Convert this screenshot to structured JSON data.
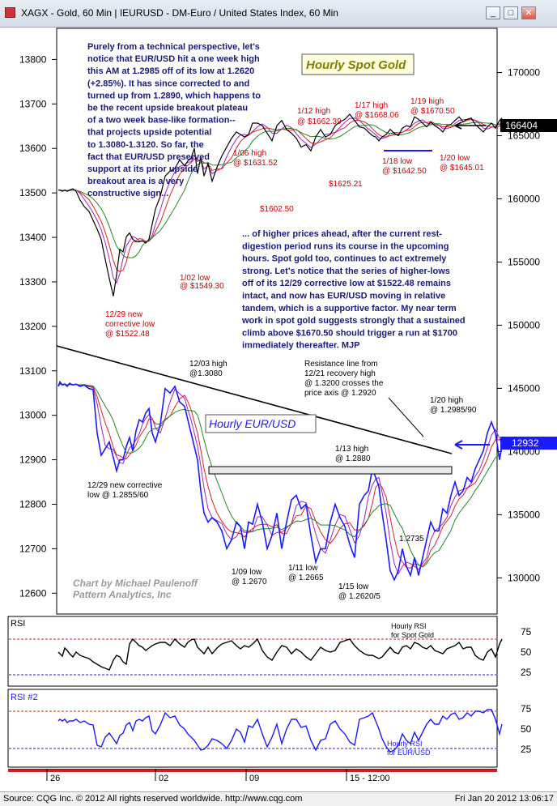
{
  "window": {
    "title": "XAGX - Gold, 60 Min    |   IEURUSD - DM-Euro / United States Index, 60 Min",
    "buttons": [
      "_",
      "□",
      "✕"
    ]
  },
  "chart_data": [
    {
      "type": "line",
      "title": "Hourly Spot Gold",
      "axis": "right",
      "yticks": [
        130000,
        135000,
        140000,
        145000,
        150000,
        155000,
        160000,
        165000,
        170000
      ],
      "ylim": [
        127200,
        173500
      ],
      "last_value": "166404",
      "x": [
        0,
        2,
        5,
        8,
        11,
        14,
        18,
        22,
        27,
        32,
        38,
        43,
        48,
        53,
        58,
        63,
        68,
        72,
        76,
        80,
        84,
        88,
        92,
        96,
        100,
        104,
        108,
        112,
        116,
        120,
        126,
        132,
        138,
        144,
        150,
        156,
        160,
        164,
        168,
        172,
        176,
        180,
        185,
        190,
        196,
        202,
        208,
        214,
        220,
        225,
        230,
        235,
        240,
        246,
        252,
        258,
        264,
        270,
        276,
        282,
        288,
        294,
        300,
        306,
        312,
        318,
        324,
        330,
        336,
        342,
        348,
        354,
        360,
        366,
        372,
        378,
        383,
        388,
        392,
        396,
        400,
        405,
        410,
        415,
        420,
        425,
        430,
        435,
        440,
        445,
        450,
        455,
        460,
        465,
        470,
        475,
        480,
        485,
        490,
        495,
        500,
        505,
        510,
        515,
        520,
        525,
        530,
        535,
        540,
        545,
        548
      ],
      "series": [
        {
          "values": [
            160700,
            160700,
            160600,
            160700,
            160600,
            160700,
            160800,
            160600,
            159900,
            159400,
            159000,
            158300,
            157600,
            156800,
            155200,
            153700,
            152300,
            154000,
            156000,
            155800,
            157000,
            157300,
            156800,
            156600,
            156600,
            156700,
            156500,
            156800,
            158000,
            159200,
            160200,
            161800,
            162200,
            162400,
            163100,
            162600,
            163000,
            163200,
            164000,
            162000,
            163300,
            161800,
            162800,
            161400,
            162500,
            163400,
            164100,
            164800,
            165300,
            165100,
            164900,
            165100,
            166000,
            166000,
            165800,
            165200,
            164600,
            165800,
            166200,
            165500,
            165200,
            164800,
            164100,
            164300,
            163800,
            164900,
            165500,
            164900,
            165100,
            165800,
            166100,
            166300,
            166700,
            166200,
            165700,
            165600,
            165300,
            165000,
            164900,
            164600,
            164900,
            165100,
            165500,
            165200,
            165000,
            165600,
            165800,
            165700,
            166500,
            166300,
            166000,
            165700,
            166100,
            165800,
            165600,
            165300,
            165800,
            165900,
            166200,
            166500,
            166100,
            166300,
            166400,
            165900,
            165600,
            165300,
            165700,
            166000,
            165600,
            166200,
            166404
          ]
        }
      ],
      "annotations": [
        "1/02 low @ $1549.30",
        "12/29 new corrective low @ $1522.48",
        "1/06 high @ $1631.52",
        "$1602.50",
        "1/12 high @ $1662.39",
        "$1625.21",
        "1/17 high @ $1668.06",
        "1/19 high @ $1670.50",
        "1/18 low @ $1642.50",
        "1/20 low @ $1645.01"
      ]
    },
    {
      "type": "line",
      "title": "Hourly EUR/USD",
      "axis": "left",
      "yticks": [
        12600,
        12700,
        12800,
        12900,
        13000,
        13100,
        13200,
        13300,
        13400,
        13500,
        13600,
        13700,
        13800
      ],
      "ylim": [
        12555,
        13870
      ],
      "last_value": "12932",
      "x": [
        0,
        2,
        5,
        8,
        11,
        14,
        18,
        22,
        27,
        32,
        38,
        43,
        48,
        53,
        58,
        63,
        68,
        72,
        76,
        80,
        84,
        88,
        92,
        96,
        100,
        104,
        108,
        112,
        116,
        120,
        126,
        132,
        138,
        144,
        150,
        156,
        160,
        164,
        168,
        172,
        176,
        180,
        185,
        190,
        196,
        202,
        208,
        214,
        220,
        225,
        230,
        235,
        240,
        246,
        252,
        258,
        264,
        270,
        276,
        282,
        288,
        294,
        300,
        306,
        312,
        318,
        324,
        330,
        336,
        342,
        348,
        354,
        360,
        366,
        372,
        378,
        383,
        388,
        392,
        396,
        400,
        405,
        410,
        415,
        420,
        425,
        430,
        435,
        440,
        445,
        450,
        455,
        460,
        465,
        470,
        475,
        480,
        485,
        490,
        495,
        500,
        505,
        510,
        515,
        520,
        525,
        530,
        535,
        540,
        545,
        548
      ],
      "series": [
        {
          "values": [
            13065,
            13075,
            13068,
            13070,
            13065,
            13072,
            13068,
            13070,
            13065,
            13068,
            13060,
            13058,
            12960,
            12910,
            12925,
            12940,
            12905,
            12875,
            12900,
            12900,
            12930,
            12950,
            12920,
            12965,
            12990,
            12985,
            13005,
            13015,
            12960,
            12940,
            12980,
            13060,
            13050,
            13065,
            13030,
            13020,
            12990,
            12960,
            12930,
            12900,
            12830,
            12780,
            12760,
            12770,
            12760,
            12740,
            12700,
            12720,
            12760,
            12750,
            12700,
            12760,
            12755,
            12800,
            12760,
            12700,
            12730,
            12780,
            12700,
            12760,
            12810,
            12820,
            12790,
            12800,
            12730,
            12670,
            12700,
            12700,
            12760,
            12800,
            12770,
            12750,
            12710,
            12680,
            12800,
            12820,
            12830,
            12880,
            12860,
            12840,
            12780,
            12720,
            12650,
            12630,
            12650,
            12700,
            12660,
            12640,
            12680,
            12640,
            12680,
            12720,
            12760,
            12740,
            12740,
            12790,
            12780,
            12820,
            12850,
            12820,
            12830,
            12860,
            12850,
            12880,
            12900,
            12920,
            12960,
            12985,
            12960,
            12900,
            12932
          ]
        }
      ],
      "annotations": [
        "12/03 high @1.3080",
        "12/29 new corrective low @ 1.2855/60",
        "1/09 low @ 1.2670",
        "1/11 low @ 1.2665",
        "1/13 high @ 1.2880",
        "1/15 low @ 1.2620/5",
        "1.2735",
        "1/20 high @ 1.2985/90",
        "Resistance line from 12/21 recovery high @ 1.3200 crosses the price axis @ 1.2920"
      ]
    },
    {
      "type": "line",
      "title": "Hourly RSI for Spot Gold",
      "panel_label": "RSI",
      "yticks": [
        25,
        50,
        75
      ],
      "ylim": [
        10,
        90
      ],
      "series": [
        {
          "values": [
            50,
            48,
            45,
            55,
            52,
            48,
            44,
            50,
            46,
            44,
            42,
            38,
            35,
            32,
            30,
            28,
            40,
            46,
            44,
            38,
            35,
            60,
            66,
            62,
            58,
            56,
            52,
            55,
            58,
            60,
            62,
            62,
            58,
            66,
            60,
            56,
            62,
            65,
            66,
            56,
            52,
            48,
            56,
            48,
            55,
            60,
            62,
            64,
            58,
            54,
            58,
            56,
            60,
            66,
            52,
            44,
            40,
            50,
            58,
            56,
            48,
            54,
            50,
            44,
            40,
            48,
            56,
            52,
            50,
            52,
            62,
            64,
            66,
            58,
            52,
            48,
            46,
            46,
            44,
            42,
            44,
            50,
            56,
            50,
            48,
            56,
            58,
            54,
            62,
            60,
            56,
            54,
            58,
            52,
            50,
            48,
            54,
            56,
            58,
            62,
            54,
            56,
            56,
            46,
            42,
            40,
            50,
            54,
            44,
            60,
            66
          ]
        }
      ]
    },
    {
      "type": "line",
      "title": "Hourly RSI for EUR/USD",
      "panel_label": "RSI #2",
      "yticks": [
        25,
        50,
        75
      ],
      "ylim": [
        10,
        90
      ],
      "series": [
        {
          "values": [
            60,
            62,
            60,
            62,
            58,
            60,
            60,
            62,
            58,
            60,
            56,
            55,
            30,
            28,
            40,
            45,
            38,
            32,
            42,
            45,
            55,
            58,
            48,
            60,
            62,
            60,
            64,
            66,
            48,
            44,
            55,
            70,
            64,
            66,
            55,
            50,
            44,
            40,
            36,
            30,
            24,
            25,
            30,
            38,
            36,
            32,
            26,
            36,
            50,
            46,
            34,
            54,
            52,
            62,
            44,
            28,
            40,
            56,
            32,
            50,
            62,
            62,
            52,
            54,
            36,
            24,
            36,
            38,
            56,
            60,
            50,
            44,
            34,
            30,
            62,
            64,
            66,
            70,
            60,
            50,
            38,
            28,
            22,
            24,
            30,
            44,
            36,
            32,
            46,
            36,
            46,
            56,
            62,
            56,
            56,
            66,
            62,
            68,
            70,
            62,
            64,
            70,
            66,
            72,
            72,
            70,
            74,
            74,
            62,
            44,
            56
          ]
        }
      ]
    }
  ],
  "x_axis": {
    "labels": [
      "26",
      "02",
      "09",
      "15 - 12:00"
    ]
  },
  "commentary": {
    "top": [
      "Purely from a technical perspective, let's",
      "notice that EUR/USD hit a one week high",
      "this AM at 1.2985 off of its low at 1.2620",
      "(+2.85%). It has since corrected to and",
      "turned up from 1.2890, which happens to",
      "be the recent upside breakout plateau",
      "of a two week base-like formation--",
      "that projects upside potential",
      "to 1.3080-1.3120. So far, the",
      "fact that EUR/USD preserved",
      "support at its prior upside",
      "breakout area is a very",
      "constructive sign..."
    ],
    "middle": [
      "... of higher prices ahead, after the current rest-",
      "digestion period runs its course in the upcoming",
      "hours. Spot gold too, continues to act extremely",
      "strong. Let's notice that the series of higher-lows",
      "off of its 12/29 corrective low at $1522.48 remains",
      "intact, and now has EUR/USD moving in relative",
      "tandem, which is a supportive factor. My near term",
      "work in spot gold suggests strongly that a sustained",
      "climb above $1670.50 should trigger a run at $1700",
      "immediately thereafter. MJP"
    ]
  },
  "labels": {
    "gold_title": "Hourly Spot Gold",
    "eur_title": "Hourly EUR/USD",
    "gold_last": "166404",
    "eur_last": "12932",
    "watermark_1": "Chart by Michael Paulenoff",
    "watermark_2": "Pattern Analytics, Inc",
    "rsi1_label": "RSI",
    "rsi2_label": "RSI #2",
    "rsi1_title_1": "Hourly RSI",
    "rsi1_title_2": "for Spot Gold",
    "rsi2_title_1": "Hourly RSI",
    "rsi2_title_2": "for EUR/USD",
    "g_1_02_a": "1/02 low",
    "g_1_02_b": "@ $1549.30",
    "g_12_29_a": "12/29 new",
    "g_12_29_b": "corrective low",
    "g_12_29_c": "@ $1522.48",
    "g_1_06_a": "1/06 high",
    "g_1_06_b": "@ $1631.52",
    "g_1602": "$1602.50",
    "g_1_12_a": "1/12 high",
    "g_1_12_b": "@ $1662.39",
    "g_1625": "$1625.21",
    "g_1_17_a": "1/17 high",
    "g_1_17_b": "@ $1668.06",
    "g_1_19_a": "1/19 high",
    "g_1_19_b": "@ $1670.50",
    "g_1_18_a": "1/18 low",
    "g_1_18_b": "@ $1642.50",
    "g_1_20_a": "1/20 low",
    "g_1_20_b": "@ $1645.01",
    "e_12_03_a": "12/03 high",
    "e_12_03_b": "@1.3080",
    "e_12_29_a": "12/29 new corrective",
    "e_12_29_b": "low @ 1.2855/60",
    "e_1_09_a": "1/09 low",
    "e_1_09_b": "@ 1.2670",
    "e_1_11_a": "1/11 low",
    "e_1_11_b": "@ 1.2665",
    "e_1_13_a": "1/13 high",
    "e_1_13_b": "@ 1.2880",
    "e_1_15_a": "1/15 low",
    "e_1_15_b": "@ 1.2620/5",
    "e_1_2735": "1.2735",
    "e_1_20_a": "1/20 high",
    "e_1_20_b": "@ 1.2985/90",
    "e_res_1": "Resistance line from",
    "e_res_2": "12/21 recovery high",
    "e_res_3": "@ 1.3200 crosses the",
    "e_res_4": "price axis @ 1.2920"
  },
  "footer": {
    "left": "Source: CQG Inc. © 2012 All rights reserved worldwide.  http://www.cqg.com",
    "right": "Fri Jan 20 2012 13:06:17"
  },
  "colors": {
    "gold_line": "#000000",
    "eur_line": "#1a1aff",
    "annotation_red": "#cc0000",
    "commentary_navy": "#1a1a80",
    "ma_red": "#dd2222",
    "ma_green": "#228822",
    "ma_purple": "#a020c0",
    "last_box": "#1a1aff"
  }
}
